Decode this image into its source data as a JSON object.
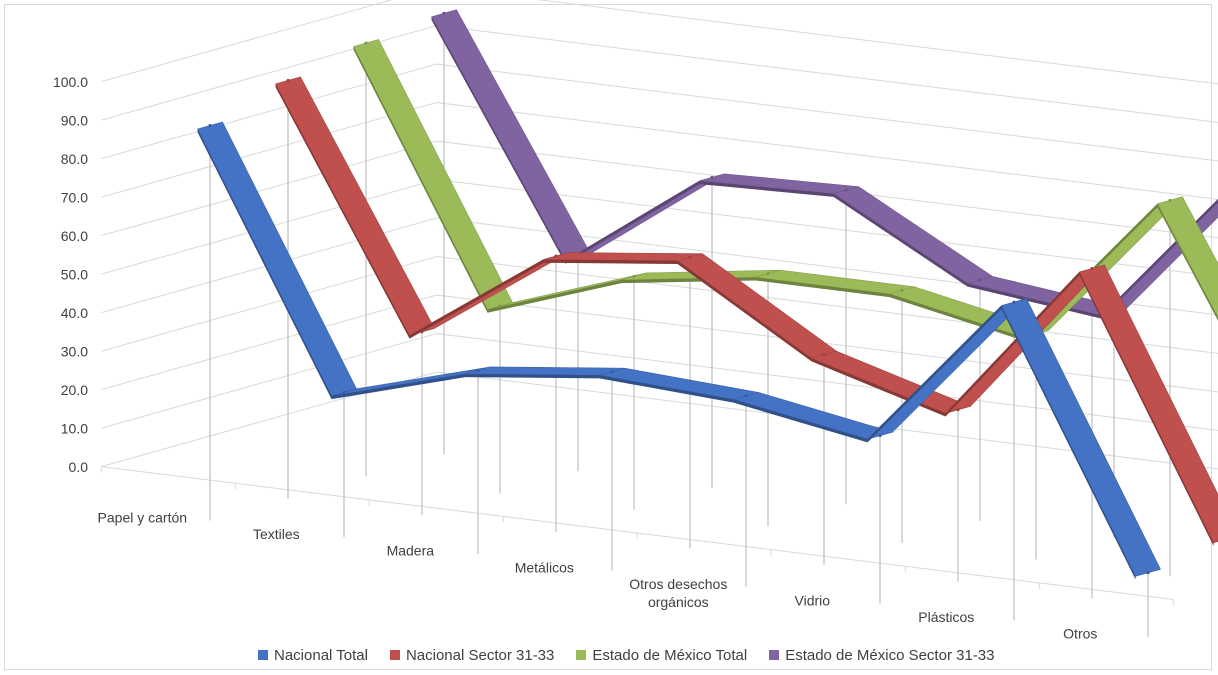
{
  "chart_data": {
    "type": "line",
    "style": "3d-ribbon",
    "categories": [
      "Papel y cartón",
      "Textiles",
      "Madera",
      "Metálicos",
      "Otros desechos orgánicos",
      "Vidrio",
      "Plásticos",
      "Otros"
    ],
    "series": [
      {
        "name": "Nacional Total",
        "color": "#4472c4",
        "values": [
          88,
          23,
          33,
          37,
          35,
          29,
          68,
          2
        ]
      },
      {
        "name": "Nacional Sector 31-33",
        "color": "#c0504d",
        "values": [
          94,
          33,
          57,
          61,
          40,
          30,
          71,
          5
        ]
      },
      {
        "name": "Estado de México Total",
        "color": "#9bbb59",
        "values": [
          98,
          34,
          46,
          51,
          51,
          44,
          83,
          22
        ]
      },
      {
        "name": "Estado de México Sector 31-33",
        "color": "#8064a2",
        "values": [
          100,
          41,
          66,
          67,
          48,
          44,
          83,
          19
        ]
      }
    ],
    "y_ticks": [
      "0.0",
      "10.0",
      "20.0",
      "30.0",
      "40.0",
      "50.0",
      "60.0",
      "70.0",
      "80.0",
      "90.0",
      "100.0"
    ],
    "ylim": [
      0,
      100
    ],
    "grid": true,
    "legend": "bottom"
  }
}
